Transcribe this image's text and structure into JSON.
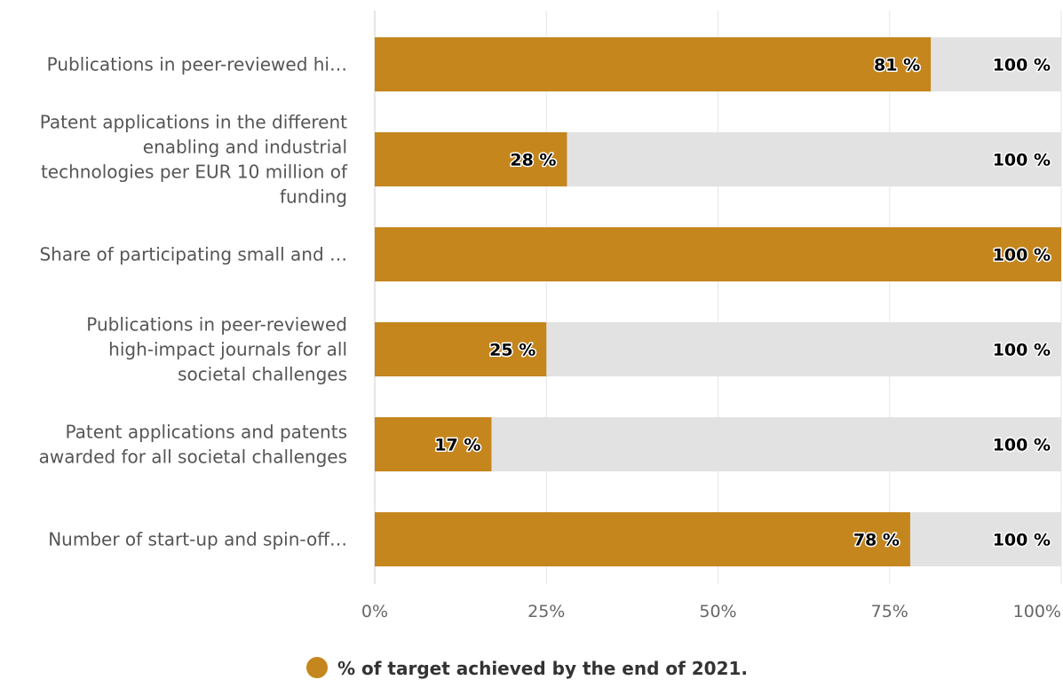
{
  "chart_data": {
    "type": "bar",
    "orientation": "horizontal",
    "stacked": "overlay",
    "categories": [
      [
        "Publications in peer-reviewed hi…"
      ],
      [
        "Patent applications in the different",
        "enabling and industrial",
        "technologies per EUR 10 million of",
        "funding"
      ],
      [
        "Share of participating small and …"
      ],
      [
        "Publications in peer-reviewed",
        "high-impact journals for all",
        "societal challenges"
      ],
      [
        "Patent applications and patents",
        "awarded for all societal challenges"
      ],
      [
        "Number of start-up and spin-off…"
      ]
    ],
    "series": [
      {
        "name": "% of target achieved by the end of 2021.",
        "values": [
          81,
          28,
          100,
          25,
          17,
          78
        ],
        "labels": [
          "81 %",
          "28 %",
          "100 %",
          "25 %",
          "17 %",
          "78 %"
        ],
        "color": "#c5861e"
      },
      {
        "name": "",
        "values": [
          100,
          100,
          100,
          100,
          100,
          100
        ],
        "labels": [
          "100 %",
          "100 %",
          "100 %",
          "100 %",
          "100 %",
          "100 %"
        ],
        "color": "#e2e2e2"
      }
    ],
    "xlim": [
      0,
      100
    ],
    "xticks": [
      "0%",
      "25%",
      "50%",
      "75%",
      "100%"
    ],
    "grid": true,
    "legend_position": "bottom-center"
  }
}
